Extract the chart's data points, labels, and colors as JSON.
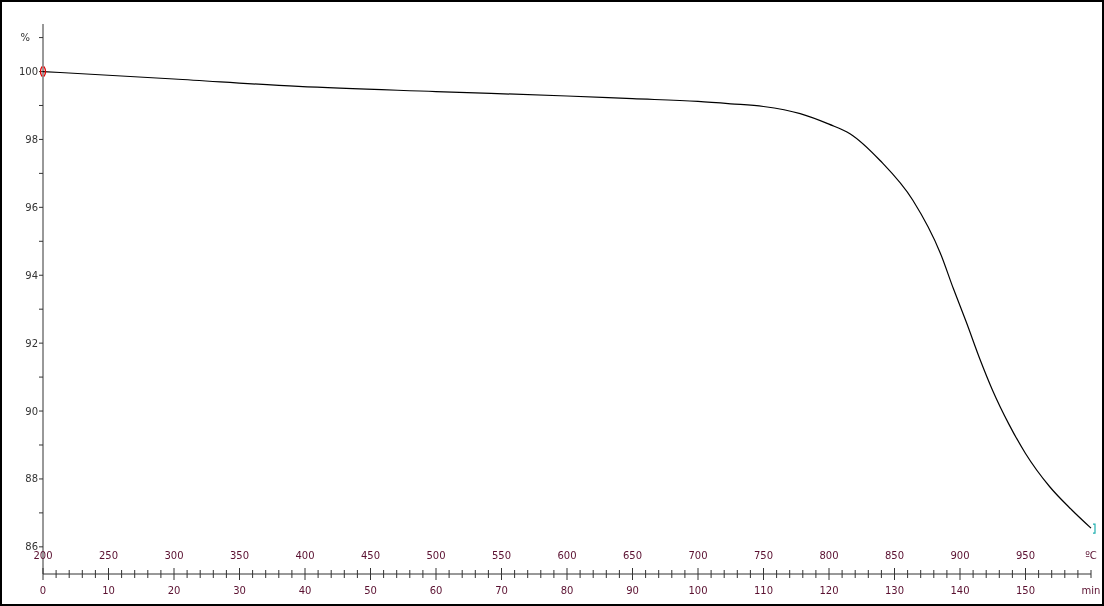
{
  "chart_data": {
    "type": "line",
    "ylabel": "%",
    "xlabel": "min",
    "x2label": "ºC",
    "xlim": [
      0,
      160
    ],
    "ylim": [
      85.2,
      101.4
    ],
    "x2lim": [
      200,
      1000
    ],
    "yticks": [
      86,
      {
        "value": 87,
        "label": null
      },
      88,
      {
        "value": 89,
        "label": null
      },
      90,
      {
        "value": 91,
        "label": null
      },
      92,
      {
        "value": 93,
        "label": null
      },
      94,
      {
        "value": 95,
        "label": null
      },
      96,
      {
        "value": 97,
        "label": null
      },
      98,
      {
        "value": 99,
        "label": null
      },
      100,
      {
        "value": 101,
        "label": null
      }
    ],
    "xticks": [
      0,
      {
        "value": 2,
        "label": null
      },
      {
        "value": 4,
        "label": null
      },
      {
        "value": 6,
        "label": null
      },
      {
        "value": 8,
        "label": null
      },
      10,
      {
        "value": 12,
        "label": null
      },
      {
        "value": 14,
        "label": null
      },
      {
        "value": 16,
        "label": null
      },
      {
        "value": 18,
        "label": null
      },
      20,
      {
        "value": 22,
        "label": null
      },
      {
        "value": 24,
        "label": null
      },
      {
        "value": 26,
        "label": null
      },
      {
        "value": 28,
        "label": null
      },
      30,
      {
        "value": 32,
        "label": null
      },
      {
        "value": 34,
        "label": null
      },
      {
        "value": 36,
        "label": null
      },
      {
        "value": 38,
        "label": null
      },
      40,
      {
        "value": 42,
        "label": null
      },
      {
        "value": 44,
        "label": null
      },
      {
        "value": 46,
        "label": null
      },
      {
        "value": 48,
        "label": null
      },
      50,
      {
        "value": 52,
        "label": null
      },
      {
        "value": 54,
        "label": null
      },
      {
        "value": 56,
        "label": null
      },
      {
        "value": 58,
        "label": null
      },
      60,
      {
        "value": 62,
        "label": null
      },
      {
        "value": 64,
        "label": null
      },
      {
        "value": 66,
        "label": null
      },
      {
        "value": 68,
        "label": null
      },
      70,
      {
        "value": 72,
        "label": null
      },
      {
        "value": 74,
        "label": null
      },
      {
        "value": 76,
        "label": null
      },
      {
        "value": 78,
        "label": null
      },
      80,
      {
        "value": 82,
        "label": null
      },
      {
        "value": 84,
        "label": null
      },
      {
        "value": 86,
        "label": null
      },
      {
        "value": 88,
        "label": null
      },
      90,
      {
        "value": 92,
        "label": null
      },
      {
        "value": 94,
        "label": null
      },
      {
        "value": 96,
        "label": null
      },
      {
        "value": 98,
        "label": null
      },
      100,
      {
        "value": 102,
        "label": null
      },
      {
        "value": 104,
        "label": null
      },
      {
        "value": 106,
        "label": null
      },
      {
        "value": 108,
        "label": null
      },
      110,
      {
        "value": 112,
        "label": null
      },
      {
        "value": 114,
        "label": null
      },
      {
        "value": 116,
        "label": null
      },
      {
        "value": 118,
        "label": null
      },
      120,
      {
        "value": 122,
        "label": null
      },
      {
        "value": 124,
        "label": null
      },
      {
        "value": 126,
        "label": null
      },
      {
        "value": 128,
        "label": null
      },
      130,
      {
        "value": 132,
        "label": null
      },
      {
        "value": 134,
        "label": null
      },
      {
        "value": 136,
        "label": null
      },
      {
        "value": 138,
        "label": null
      },
      140,
      {
        "value": 142,
        "label": null
      },
      {
        "value": 144,
        "label": null
      },
      {
        "value": 146,
        "label": null
      },
      {
        "value": 148,
        "label": null
      },
      150,
      {
        "value": 152,
        "label": null
      },
      {
        "value": 154,
        "label": null
      },
      {
        "value": 156,
        "label": null
      },
      {
        "value": 158,
        "label": null
      },
      {
        "value": 160,
        "label": null
      }
    ],
    "x2ticks": [
      200,
      250,
      300,
      350,
      400,
      450,
      500,
      550,
      600,
      650,
      700,
      750,
      800,
      850,
      900,
      950
    ],
    "grid": false,
    "marker": "none",
    "line_style": "solid",
    "series": [
      {
        "color": "#000000",
        "x": [
          0,
          20,
          39,
          60,
          80,
          90,
          100,
          105,
          110,
          115.6,
          120,
          123.2,
          127.8,
          132.8,
          137,
          139,
          141,
          143,
          145,
          147.5,
          150,
          153.7,
          157,
          160
        ],
        "values": [
          100.0,
          99.78,
          99.56,
          99.41,
          99.28,
          99.2,
          99.12,
          99.05,
          98.97,
          98.76,
          98.45,
          98.17,
          97.38,
          96.21,
          94.65,
          93.6,
          92.6,
          91.55,
          90.6,
          89.6,
          88.75,
          87.77,
          87.1,
          86.55
        ]
      }
    ]
  }
}
